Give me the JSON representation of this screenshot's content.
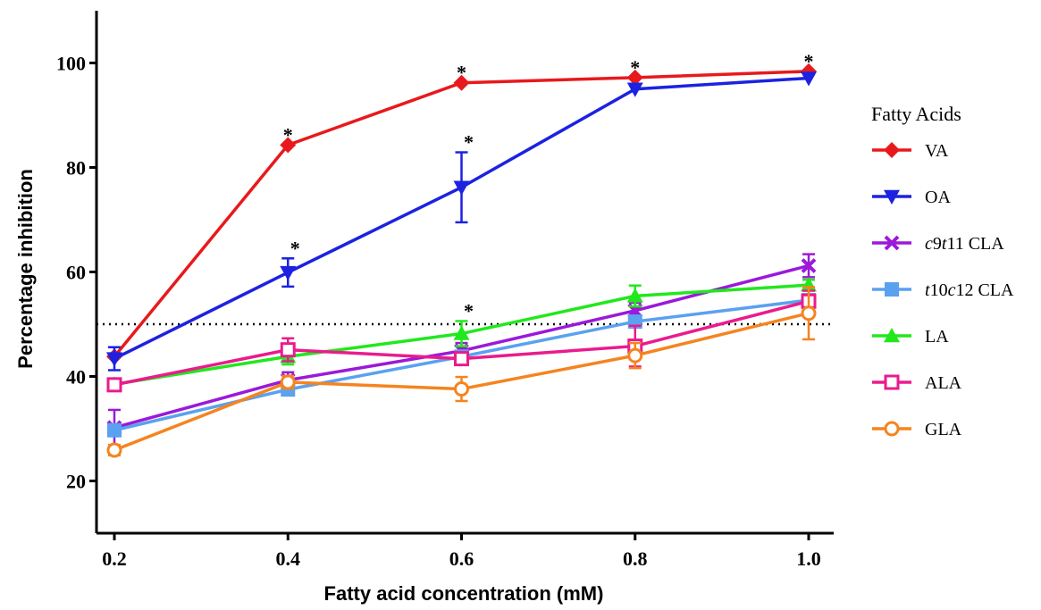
{
  "chart_data": {
    "type": "line",
    "xlabel": "Fatty acid concentration (mM)",
    "ylabel": "Percentage inhibition",
    "xlim": [
      0.2,
      1.0
    ],
    "ylim": [
      10,
      110
    ],
    "x_ticks": [
      "0.2",
      "0.4",
      "0.6",
      "0.8",
      "1.0"
    ],
    "y_ticks": [
      "20",
      "40",
      "60",
      "80",
      "100"
    ],
    "reference_line": {
      "y": 50,
      "style": "dotted"
    },
    "grid": false,
    "legend": {
      "title": "Fatty Acids",
      "placement": "right"
    },
    "x": [
      0.2,
      0.4,
      0.6,
      0.8,
      1.0
    ],
    "series": [
      {
        "name": "VA",
        "label_parts": [
          [
            "VA",
            false
          ]
        ],
        "color": "#e8191c",
        "marker": "diamond",
        "values": [
          43.8,
          84.3,
          96.2,
          97.2,
          98.4
        ],
        "err": [
          0,
          0,
          0,
          0,
          0
        ]
      },
      {
        "name": "OA",
        "label_parts": [
          [
            "OA",
            false
          ]
        ],
        "color": "#1c22e0",
        "marker": "triangle-down",
        "values": [
          43.4,
          59.9,
          76.2,
          95.0,
          97.1
        ],
        "err": [
          2.2,
          2.7,
          6.7,
          0,
          0
        ]
      },
      {
        "name": "c9t11 CLA",
        "label_parts": [
          [
            "c",
            true
          ],
          [
            "9",
            false
          ],
          [
            "t",
            true
          ],
          [
            "11 CLA",
            false
          ]
        ],
        "color": "#9b19d9",
        "marker": "x",
        "values": [
          30.2,
          39.3,
          44.9,
          52.6,
          61.2
        ],
        "err": [
          3.4,
          1.5,
          1.5,
          1.5,
          2.2
        ]
      },
      {
        "name": "t10c12 CLA",
        "label_parts": [
          [
            "t",
            true
          ],
          [
            "10",
            false
          ],
          [
            "c",
            true
          ],
          [
            "12 CLA",
            false
          ]
        ],
        "color": "#5aa1ef",
        "marker": "square",
        "values": [
          29.7,
          37.5,
          43.8,
          50.5,
          54.6
        ],
        "err": [
          1.0,
          1.0,
          1.0,
          1.0,
          1.0
        ]
      },
      {
        "name": "LA",
        "label_parts": [
          [
            "LA",
            false
          ]
        ],
        "color": "#21e81c",
        "marker": "triangle-up",
        "values": [
          38.5,
          43.8,
          48.2,
          55.4,
          57.5
        ],
        "err": [
          1.0,
          1.5,
          2.4,
          2.0,
          1.0
        ]
      },
      {
        "name": "ALA",
        "label_parts": [
          [
            "ALA",
            false
          ]
        ],
        "color": "#ea1b8d",
        "marker": "open-square",
        "values": [
          38.4,
          45.1,
          43.4,
          45.8,
          54.4
        ],
        "err": [
          1.0,
          2.2,
          1.2,
          3.9,
          2.0
        ]
      },
      {
        "name": "GLA",
        "label_parts": [
          [
            "GLA",
            false
          ]
        ],
        "color": "#f5841f",
        "marker": "open-circle",
        "values": [
          25.9,
          38.9,
          37.6,
          44.0,
          52.1
        ],
        "err": [
          1.0,
          1.2,
          2.3,
          2.4,
          5.0
        ]
      }
    ],
    "annotations": [
      {
        "text": "*",
        "series": "VA",
        "x": 0.4
      },
      {
        "text": "*",
        "series": "VA",
        "x": 0.6
      },
      {
        "text": "*",
        "series": "VA",
        "x": 0.8
      },
      {
        "text": "*",
        "series": "VA",
        "x": 1.0
      },
      {
        "text": "*",
        "series": "OA",
        "x": 0.4
      },
      {
        "text": "*",
        "series": "OA",
        "x": 0.6
      },
      {
        "text": "*",
        "series": "LA",
        "x": 0.6
      }
    ]
  }
}
